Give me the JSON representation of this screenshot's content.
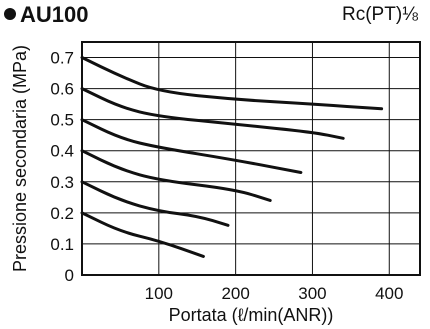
{
  "header": {
    "title": "AU100",
    "port": "Rc(PT)⅛"
  },
  "chart_data": {
    "type": "line",
    "title": "AU100",
    "xlabel": "Portata (ℓ/min(ANR))",
    "ylabel": "Pressione secondaria (MPa)",
    "xlim": [
      0,
      440
    ],
    "ylim": [
      0,
      0.75
    ],
    "x_ticks": [
      "100",
      "200",
      "300",
      "400"
    ],
    "y_ticks": [
      "0",
      "0.1",
      "0.2",
      "0.3",
      "0.4",
      "0.5",
      "0.6",
      "0.7"
    ],
    "grid": true,
    "series": [
      {
        "points": [
          [
            0,
            0.7
          ],
          [
            50,
            0.64
          ],
          [
            100,
            0.59
          ],
          [
            200,
            0.565
          ],
          [
            300,
            0.55
          ],
          [
            390,
            0.535
          ]
        ]
      },
      {
        "points": [
          [
            0,
            0.6
          ],
          [
            50,
            0.54
          ],
          [
            100,
            0.51
          ],
          [
            200,
            0.485
          ],
          [
            300,
            0.46
          ],
          [
            340,
            0.44
          ]
        ]
      },
      {
        "points": [
          [
            0,
            0.5
          ],
          [
            50,
            0.44
          ],
          [
            100,
            0.41
          ],
          [
            200,
            0.37
          ],
          [
            285,
            0.33
          ]
        ]
      },
      {
        "points": [
          [
            0,
            0.4
          ],
          [
            50,
            0.34
          ],
          [
            100,
            0.305
          ],
          [
            200,
            0.275
          ],
          [
            245,
            0.24
          ]
        ]
      },
      {
        "points": [
          [
            0,
            0.3
          ],
          [
            50,
            0.24
          ],
          [
            100,
            0.205
          ],
          [
            150,
            0.19
          ],
          [
            190,
            0.16
          ]
        ]
      },
      {
        "points": [
          [
            0,
            0.2
          ],
          [
            50,
            0.14
          ],
          [
            100,
            0.11
          ],
          [
            158,
            0.06
          ]
        ]
      }
    ]
  }
}
